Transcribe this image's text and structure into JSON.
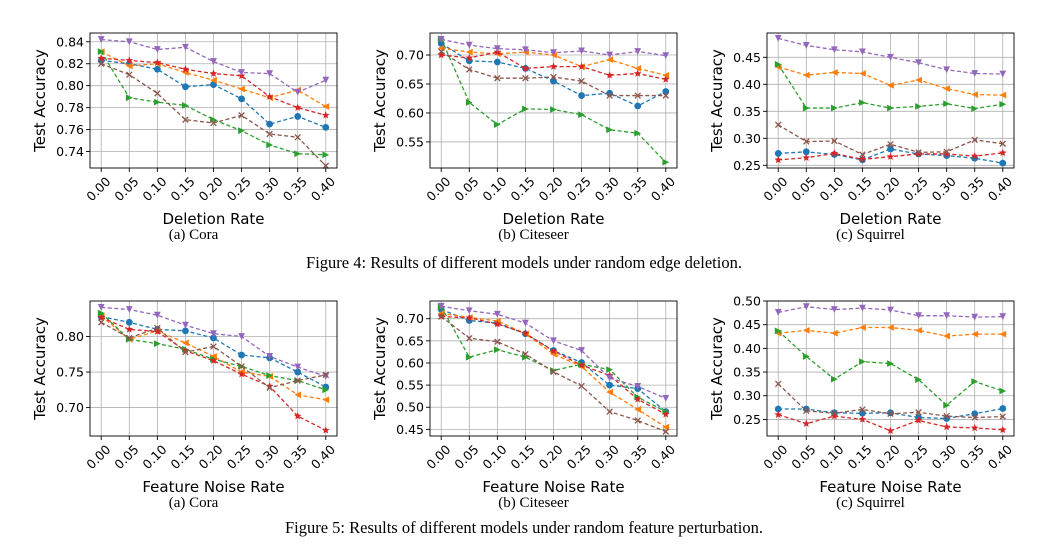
{
  "figures": [
    {
      "caption": "Figure 4: Results of different models under random edge deletion."
    },
    {
      "caption": "Figure 5: Results of different models under random feature perturbation."
    }
  ],
  "series_styles": [
    {
      "color": "#1f77b4",
      "marker": "circle"
    },
    {
      "color": "#ff7f0e",
      "marker": "triangle-left"
    },
    {
      "color": "#2ca02c",
      "marker": "triangle-right"
    },
    {
      "color": "#d62728",
      "marker": "star"
    },
    {
      "color": "#9467bd",
      "marker": "triangle-down"
    },
    {
      "color": "#8c564b",
      "marker": "x"
    }
  ],
  "chart_data": [
    {
      "type": "line",
      "caption": "(a) Cora",
      "xlabel": "Deletion Rate",
      "ylabel": "Test Accuracy",
      "x": [
        0.0,
        0.05,
        0.1,
        0.15,
        0.2,
        0.25,
        0.3,
        0.35,
        0.4
      ],
      "xticks": [
        "0.00",
        "0.05",
        "0.10",
        "0.15",
        "0.20",
        "0.25",
        "0.30",
        "0.35",
        "0.40"
      ],
      "ylim": [
        0.725,
        0.848
      ],
      "yticks": [
        0.74,
        0.76,
        0.78,
        0.8,
        0.82,
        0.84
      ],
      "ytick_labels": [
        "0.74",
        "0.76",
        "0.78",
        "0.80",
        "0.82",
        "0.84"
      ],
      "series": [
        {
          "values": [
            0.823,
            0.82,
            0.815,
            0.799,
            0.801,
            0.788,
            0.765,
            0.772,
            0.762
          ]
        },
        {
          "values": [
            0.831,
            0.818,
            0.82,
            0.812,
            0.805,
            0.797,
            0.789,
            0.796,
            0.781
          ]
        },
        {
          "values": [
            0.831,
            0.789,
            0.785,
            0.782,
            0.769,
            0.759,
            0.746,
            0.738,
            0.737
          ]
        },
        {
          "values": [
            0.825,
            0.823,
            0.821,
            0.815,
            0.811,
            0.809,
            0.79,
            0.78,
            0.773
          ]
        },
        {
          "values": [
            0.842,
            0.84,
            0.833,
            0.835,
            0.822,
            0.812,
            0.811,
            0.794,
            0.805
          ]
        },
        {
          "values": [
            0.82,
            0.81,
            0.793,
            0.769,
            0.766,
            0.773,
            0.756,
            0.753,
            0.727
          ]
        }
      ]
    },
    {
      "type": "line",
      "caption": "(b) Citeseer",
      "xlabel": "Deletion Rate",
      "ylabel": "Test Accuracy",
      "x": [
        0.0,
        0.05,
        0.1,
        0.15,
        0.2,
        0.25,
        0.3,
        0.35,
        0.4
      ],
      "xticks": [
        "0.00",
        "0.05",
        "0.10",
        "0.15",
        "0.20",
        "0.25",
        "0.30",
        "0.35",
        "0.40"
      ],
      "ylim": [
        0.505,
        0.738
      ],
      "yticks": [
        0.55,
        0.6,
        0.65,
        0.7
      ],
      "ytick_labels": [
        "0.55",
        "0.60",
        "0.65",
        "0.70"
      ],
      "series": [
        {
          "values": [
            0.72,
            0.69,
            0.688,
            0.677,
            0.655,
            0.63,
            0.634,
            0.612,
            0.637
          ]
        },
        {
          "values": [
            0.712,
            0.705,
            0.702,
            0.705,
            0.7,
            0.68,
            0.692,
            0.677,
            0.665
          ]
        },
        {
          "values": [
            0.728,
            0.618,
            0.58,
            0.607,
            0.606,
            0.597,
            0.571,
            0.565,
            0.515
          ]
        },
        {
          "values": [
            0.7,
            0.695,
            0.705,
            0.677,
            0.68,
            0.68,
            0.665,
            0.668,
            0.658
          ]
        },
        {
          "values": [
            0.727,
            0.717,
            0.711,
            0.709,
            0.704,
            0.707,
            0.7,
            0.706,
            0.699
          ]
        },
        {
          "values": [
            0.706,
            0.675,
            0.66,
            0.66,
            0.662,
            0.655,
            0.63,
            0.63,
            0.63
          ]
        }
      ]
    },
    {
      "type": "line",
      "caption": "(c) Squirrel",
      "xlabel": "Deletion Rate",
      "ylabel": "Test Accuracy",
      "x": [
        0.0,
        0.05,
        0.1,
        0.15,
        0.2,
        0.25,
        0.3,
        0.35,
        0.4
      ],
      "xticks": [
        "0.00",
        "0.05",
        "0.10",
        "0.15",
        "0.20",
        "0.25",
        "0.30",
        "0.35",
        "0.40"
      ],
      "ylim": [
        0.245,
        0.495
      ],
      "yticks": [
        0.25,
        0.3,
        0.35,
        0.4,
        0.45
      ],
      "ytick_labels": [
        "0.25",
        "0.30",
        "0.35",
        "0.40",
        "0.45"
      ],
      "series": [
        {
          "values": [
            0.272,
            0.275,
            0.27,
            0.26,
            0.28,
            0.271,
            0.268,
            0.263,
            0.254
          ]
        },
        {
          "values": [
            0.432,
            0.417,
            0.422,
            0.42,
            0.398,
            0.408,
            0.392,
            0.381,
            0.38
          ]
        },
        {
          "values": [
            0.437,
            0.356,
            0.356,
            0.366,
            0.356,
            0.359,
            0.364,
            0.355,
            0.363
          ]
        },
        {
          "values": [
            0.26,
            0.264,
            0.272,
            0.261,
            0.266,
            0.271,
            0.271,
            0.267,
            0.273
          ]
        },
        {
          "values": [
            0.485,
            0.472,
            0.464,
            0.46,
            0.45,
            0.44,
            0.427,
            0.42,
            0.419
          ]
        },
        {
          "values": [
            0.325,
            0.294,
            0.295,
            0.27,
            0.289,
            0.274,
            0.275,
            0.297,
            0.29
          ]
        }
      ]
    },
    {
      "type": "line",
      "caption": "(a) Cora",
      "xlabel": "Feature Noise Rate",
      "ylabel": "Test Accuracy",
      "x": [
        0.0,
        0.05,
        0.1,
        0.15,
        0.2,
        0.25,
        0.3,
        0.35,
        0.4
      ],
      "xticks": [
        "0.00",
        "0.05",
        "0.10",
        "0.15",
        "0.20",
        "0.25",
        "0.30",
        "0.35",
        "0.40"
      ],
      "ylim": [
        0.66,
        0.85
      ],
      "yticks": [
        0.7,
        0.75,
        0.8
      ],
      "ytick_labels": [
        "0.70",
        "0.75",
        "0.80"
      ],
      "series": [
        {
          "values": [
            0.828,
            0.82,
            0.81,
            0.808,
            0.798,
            0.774,
            0.77,
            0.75,
            0.729
          ]
        },
        {
          "values": [
            0.829,
            0.796,
            0.808,
            0.791,
            0.772,
            0.75,
            0.744,
            0.718,
            0.711
          ]
        },
        {
          "values": [
            0.833,
            0.796,
            0.79,
            0.782,
            0.768,
            0.758,
            0.745,
            0.738,
            0.725
          ]
        },
        {
          "values": [
            0.827,
            0.81,
            0.807,
            0.78,
            0.766,
            0.747,
            0.73,
            0.688,
            0.668
          ]
        },
        {
          "values": [
            0.841,
            0.838,
            0.83,
            0.816,
            0.804,
            0.8,
            0.772,
            0.757,
            0.744
          ]
        },
        {
          "values": [
            0.82,
            0.798,
            0.812,
            0.778,
            0.786,
            0.758,
            0.728,
            0.738,
            0.746
          ]
        }
      ]
    },
    {
      "type": "line",
      "caption": "(b) Citeseer",
      "xlabel": "Feature Noise Rate",
      "ylabel": "Test Accuracy",
      "x": [
        0.0,
        0.05,
        0.1,
        0.15,
        0.2,
        0.25,
        0.3,
        0.35,
        0.4
      ],
      "xticks": [
        "0.00",
        "0.05",
        "0.10",
        "0.15",
        "0.20",
        "0.25",
        "0.30",
        "0.35",
        "0.40"
      ],
      "ylim": [
        0.435,
        0.74
      ],
      "yticks": [
        0.45,
        0.5,
        0.55,
        0.6,
        0.65,
        0.7
      ],
      "ytick_labels": [
        "0.45",
        "0.50",
        "0.55",
        "0.60",
        "0.65",
        "0.70"
      ],
      "series": [
        {
          "values": [
            0.721,
            0.696,
            0.69,
            0.666,
            0.628,
            0.601,
            0.55,
            0.542,
            0.49
          ]
        },
        {
          "values": [
            0.712,
            0.703,
            0.695,
            0.666,
            0.62,
            0.592,
            0.534,
            0.495,
            0.455
          ]
        },
        {
          "values": [
            0.727,
            0.613,
            0.63,
            0.613,
            0.583,
            0.597,
            0.585,
            0.523,
            0.49
          ]
        },
        {
          "values": [
            0.705,
            0.702,
            0.688,
            0.667,
            0.627,
            0.595,
            0.572,
            0.518,
            0.484
          ]
        },
        {
          "values": [
            0.728,
            0.718,
            0.71,
            0.69,
            0.65,
            0.628,
            0.566,
            0.547,
            0.52
          ]
        },
        {
          "values": [
            0.705,
            0.656,
            0.648,
            0.62,
            0.58,
            0.548,
            0.49,
            0.47,
            0.445
          ]
        }
      ]
    },
    {
      "type": "line",
      "caption": "(c) Squirrel",
      "xlabel": "Feature Noise Rate",
      "ylabel": "Test Accuracy",
      "x": [
        0.0,
        0.05,
        0.1,
        0.15,
        0.2,
        0.25,
        0.3,
        0.35,
        0.4
      ],
      "xticks": [
        "0.00",
        "0.05",
        "0.10",
        "0.15",
        "0.20",
        "0.25",
        "0.30",
        "0.35",
        "0.40"
      ],
      "ylim": [
        0.215,
        0.5
      ],
      "yticks": [
        0.25,
        0.3,
        0.35,
        0.4,
        0.45,
        0.5
      ],
      "ytick_labels": [
        "0.25",
        "0.30",
        "0.35",
        "0.40",
        "0.45",
        "0.50"
      ],
      "series": [
        {
          "values": [
            0.272,
            0.272,
            0.264,
            0.263,
            0.264,
            0.254,
            0.252,
            0.262,
            0.273
          ]
        },
        {
          "values": [
            0.432,
            0.438,
            0.432,
            0.444,
            0.444,
            0.438,
            0.426,
            0.43,
            0.43
          ]
        },
        {
          "values": [
            0.437,
            0.383,
            0.335,
            0.372,
            0.368,
            0.334,
            0.28,
            0.33,
            0.31
          ]
        },
        {
          "values": [
            0.26,
            0.241,
            0.257,
            0.25,
            0.226,
            0.248,
            0.234,
            0.232,
            0.228
          ]
        },
        {
          "values": [
            0.476,
            0.488,
            0.482,
            0.485,
            0.481,
            0.469,
            0.469,
            0.466,
            0.467
          ]
        },
        {
          "values": [
            0.325,
            0.268,
            0.263,
            0.271,
            0.262,
            0.265,
            0.257,
            0.254,
            0.256
          ]
        }
      ]
    }
  ]
}
